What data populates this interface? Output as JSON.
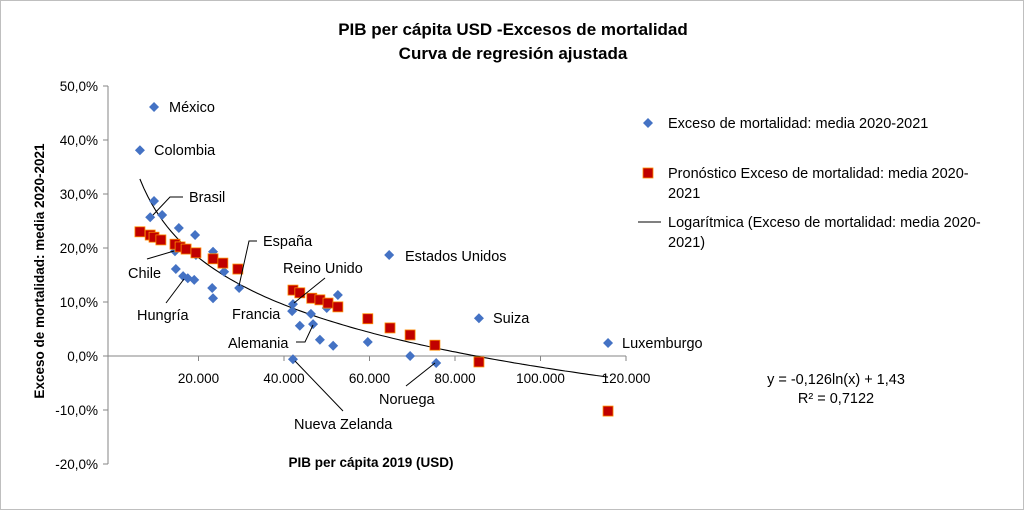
{
  "chart_data": {
    "type": "scatter",
    "title": [
      "PIB per cápita USD -Excesos de mortalidad",
      "Curva de regresión ajustada"
    ],
    "xlabel": "PIB per cápita 2019 (USD)",
    "ylabel": "Exceso de mortalidad: media 2020-2021",
    "xlim": [
      0,
      120000
    ],
    "ylim": [
      -0.2,
      0.5
    ],
    "x_ticks": [
      "20.000",
      "40.000",
      "60.000",
      "80.000",
      "100.000",
      "120.000"
    ],
    "x_tick_values": [
      20000,
      40000,
      60000,
      80000,
      100000,
      120000
    ],
    "y_ticks": [
      "50,0%",
      "40,0%",
      "30,0%",
      "20,0%",
      "10,0%",
      "0,0%",
      "-10,0%",
      "-20,0%"
    ],
    "y_tick_values": [
      0.5,
      0.4,
      0.3,
      0.2,
      0.1,
      0.0,
      -0.1,
      -0.2
    ],
    "grid": false,
    "legend_position": "right",
    "colors": {
      "observed": "#4472c4",
      "forecast": "#c00000",
      "trend": "#000000"
    },
    "series": [
      {
        "name": "Exceso de mortalidad: media 2020-2021",
        "marker": "diamond",
        "points": [
          [
            9600,
            0.461
          ],
          [
            6300,
            0.381
          ],
          [
            9600,
            0.287
          ],
          [
            8700,
            0.257
          ],
          [
            11500,
            0.261
          ],
          [
            15400,
            0.237
          ],
          [
            19200,
            0.224
          ],
          [
            14500,
            0.194
          ],
          [
            19400,
            0.187
          ],
          [
            14700,
            0.161
          ],
          [
            16400,
            0.148
          ],
          [
            17500,
            0.144
          ],
          [
            19000,
            0.141
          ],
          [
            23400,
            0.193
          ],
          [
            23200,
            0.126
          ],
          [
            23400,
            0.107
          ],
          [
            26000,
            0.156
          ],
          [
            29500,
            0.126
          ],
          [
            42100,
            0.096
          ],
          [
            41900,
            0.083
          ],
          [
            46300,
            0.078
          ],
          [
            43700,
            0.056
          ],
          [
            46800,
            0.059
          ],
          [
            52600,
            0.113
          ],
          [
            50000,
            0.089
          ],
          [
            48400,
            0.03
          ],
          [
            51500,
            0.019
          ],
          [
            59600,
            0.026
          ],
          [
            69500,
            0.0
          ],
          [
            75600,
            -0.013
          ],
          [
            42100,
            -0.006
          ],
          [
            64600,
            0.187
          ],
          [
            85600,
            0.07
          ],
          [
            115800,
            0.024
          ]
        ]
      },
      {
        "name": "Pronóstico Exceso de mortalidad: media 2020-2021",
        "marker": "square",
        "points": [
          [
            6300,
            0.23
          ],
          [
            8700,
            0.224
          ],
          [
            9600,
            0.22
          ],
          [
            11200,
            0.215
          ],
          [
            14500,
            0.207
          ],
          [
            15700,
            0.202
          ],
          [
            17100,
            0.198
          ],
          [
            19400,
            0.191
          ],
          [
            23400,
            0.18
          ],
          [
            25700,
            0.172
          ],
          [
            29200,
            0.161
          ],
          [
            42100,
            0.122
          ],
          [
            43700,
            0.117
          ],
          [
            46500,
            0.107
          ],
          [
            48400,
            0.104
          ],
          [
            50300,
            0.098
          ],
          [
            52600,
            0.091
          ],
          [
            59600,
            0.069
          ],
          [
            64800,
            0.052
          ],
          [
            69500,
            0.039
          ],
          [
            75300,
            0.02
          ],
          [
            85600,
            -0.011
          ],
          [
            115800,
            -0.102
          ]
        ]
      },
      {
        "name": "Logarítmica (Exceso de mortalidad: media 2020-2021)",
        "type": "trendline",
        "equation": {
          "a": -0.126,
          "b": 1.43
        },
        "x_range": [
          6300,
          115800
        ]
      }
    ],
    "legend": [
      "Exceso de mortalidad: media 2020-",
      "2021"
    ],
    "legend_entries": [
      [
        "Exceso de mortalidad: media 2020-2021"
      ],
      [
        "Pronóstico Exceso de mortalidad: media 2020-",
        "2021"
      ],
      [
        "Logarítmica (Exceso de mortalidad: media 2020-",
        "2021)"
      ]
    ],
    "annotations": {
      "equation": "y = -0,126ln(x) + 1,43",
      "r_squared": "R² = 0,7122",
      "point_labels": [
        "México",
        "Colombia",
        "Brasil",
        "Chile",
        "Hungría",
        "España",
        "Reino Unido",
        "Francia",
        "Alemania",
        "Estados Unidos",
        "Suiza",
        "Luxemburgo",
        "Noruega",
        "Nueva Zelanda"
      ]
    }
  }
}
